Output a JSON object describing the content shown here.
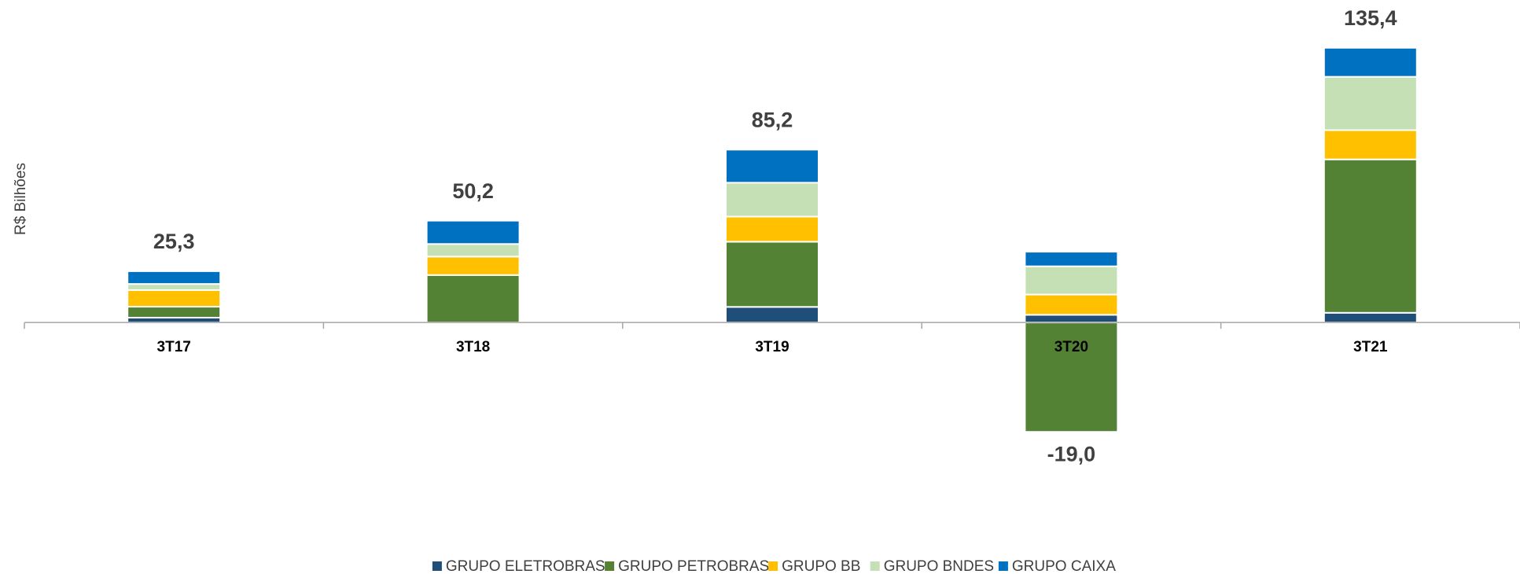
{
  "chart_data": {
    "type": "stacked_bar",
    "y_label": "R$ Bilhões",
    "categories": [
      "3T17",
      "3T18",
      "3T19",
      "3T20",
      "3T21"
    ],
    "series": [
      {
        "name": "GRUPO ELETROBRAS",
        "color": "#1f4e79",
        "values": [
          2.4,
          0,
          7.7,
          3.8,
          4.8
        ]
      },
      {
        "name": "GRUPO PETROBRAS",
        "color": "#548235",
        "values": [
          5.4,
          23.4,
          32.1,
          -53.9,
          75.6
        ]
      },
      {
        "name": "GRUPO BB",
        "color": "#ffc000",
        "values": [
          8.2,
          9.1,
          12.4,
          10.0,
          14.4
        ]
      },
      {
        "name": "GRUPO BNDES",
        "color": "#c5e0b4",
        "values": [
          3.0,
          6.2,
          16.7,
          13.9,
          26.3
        ]
      },
      {
        "name": "GRUPO CAIXA",
        "color": "#0070c0",
        "values": [
          6.3,
          11.5,
          16.3,
          7.2,
          14.3
        ]
      }
    ],
    "totals": [
      25.3,
      50.2,
      85.2,
      -19.0,
      135.4
    ],
    "value_labels": [
      "25,3",
      "50,2",
      "85,2",
      "-19,0",
      "135,4"
    ],
    "ylim": [
      -60,
      145
    ],
    "legend": "bottom"
  }
}
